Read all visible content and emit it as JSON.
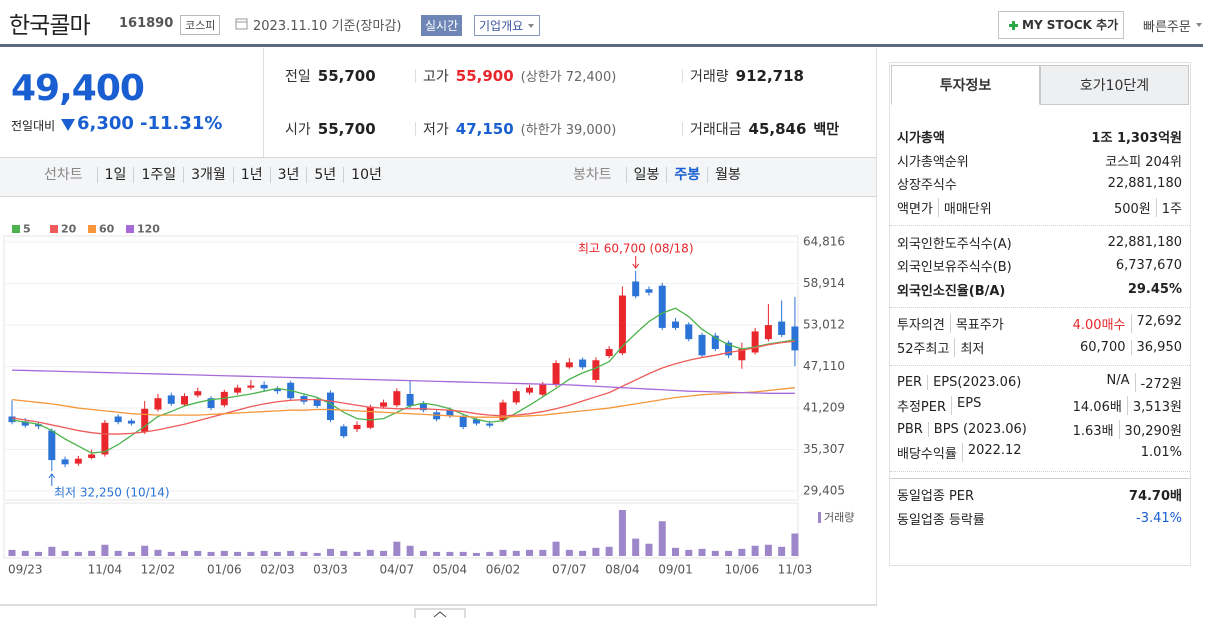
{
  "header": {
    "name": "한국콜마",
    "code": "161890",
    "market": "코스피",
    "date": "2023.11.10 기준(장마감)",
    "realtime": "실시간",
    "overview": "기업개요",
    "mystock": "MY STOCK 추가",
    "quick_order": "빠른주문"
  },
  "price": {
    "current": "49,400",
    "change_label": "전일대비",
    "change": "6,300",
    "change_pct": "-11.31%"
  },
  "quote": {
    "rows": [
      [
        {
          "label": "전일",
          "value": "55,700"
        },
        {
          "label": "고가",
          "value": "55,900",
          "note": "(상한가 72,400)"
        },
        {
          "label": "거래량",
          "value": "912,718"
        }
      ],
      [
        {
          "label": "시가",
          "value": "55,700"
        },
        {
          "label": "저가",
          "value": "47,150",
          "note": "(하한가 39,000)"
        },
        {
          "label": "거래대금",
          "value": "45,846",
          "unit": "백만"
        }
      ]
    ]
  },
  "chart_tabs": {
    "line": {
      "label": "선차트",
      "items": [
        "1일",
        "1주일",
        "3개월",
        "1년",
        "3년",
        "5년",
        "10년"
      ]
    },
    "candle": {
      "label": "봉차트",
      "items": [
        "일봉",
        "주봉",
        "월봉"
      ]
    }
  },
  "chart_data": {
    "type": "candlestick",
    "categories": [
      null,
      "09/23",
      null,
      null,
      null,
      null,
      null,
      "11/04",
      null,
      null,
      null,
      "12/02",
      null,
      null,
      null,
      null,
      "01/06",
      null,
      null,
      null,
      "02/03",
      null,
      null,
      null,
      "03/03",
      null,
      null,
      null,
      null,
      "04/07",
      null,
      null,
      null,
      "05/04",
      null,
      null,
      null,
      "06/02",
      null,
      null,
      null,
      null,
      "07/07",
      null,
      null,
      null,
      "08/04",
      null,
      null,
      null,
      "09/01",
      null,
      null,
      null,
      null,
      "10/06",
      null,
      null,
      null,
      "11/03"
    ],
    "open": [
      40000,
      39300,
      38900,
      38000,
      33900,
      33300,
      34100,
      34600,
      40000,
      39400,
      37800,
      41000,
      43000,
      41700,
      43000,
      42600,
      41600,
      43400,
      44100,
      44500,
      43900,
      44800,
      42900,
      42400,
      43400,
      38600,
      38200,
      38400,
      41400,
      41600,
      43200,
      41900,
      40600,
      41000,
      40000,
      39600,
      39000,
      39500,
      42000,
      43400,
      43100,
      44500,
      47000,
      48100,
      45200,
      48600,
      49000,
      59200,
      58100,
      58600,
      53500,
      53100,
      51600,
      51500,
      50500,
      48000,
      49100,
      51000,
      53500,
      52800
    ],
    "high": [
      42300,
      39800,
      39300,
      38300,
      34300,
      34400,
      35300,
      39500,
      40300,
      39700,
      42200,
      43200,
      43400,
      43300,
      44100,
      42900,
      43800,
      44500,
      45200,
      45000,
      44300,
      45100,
      43300,
      42800,
      43700,
      38900,
      39300,
      41700,
      42400,
      44000,
      45200,
      42200,
      40900,
      41300,
      40300,
      39900,
      39400,
      42400,
      44000,
      44500,
      44900,
      48000,
      48300,
      48400,
      48400,
      50000,
      58500,
      60700,
      58500,
      59000,
      54000,
      53400,
      51900,
      51900,
      50800,
      50500,
      52600,
      56000,
      56500,
      57000
    ],
    "low": [
      38900,
      38400,
      38200,
      32250,
      32800,
      33000,
      33900,
      34300,
      38900,
      38700,
      37500,
      40700,
      41500,
      41400,
      42700,
      40900,
      41300,
      43100,
      43800,
      43500,
      43200,
      42300,
      41700,
      41200,
      39200,
      36900,
      37800,
      38200,
      41100,
      41300,
      41200,
      40600,
      39300,
      39800,
      38200,
      38700,
      38400,
      39200,
      41700,
      43100,
      42800,
      44200,
      46800,
      46700,
      44800,
      48300,
      48700,
      56800,
      57200,
      52300,
      52300,
      50700,
      48400,
      49300,
      48300,
      46800,
      48800,
      50700,
      51300,
      47150
    ],
    "close": [
      39200,
      38700,
      38600,
      33800,
      33200,
      34000,
      34600,
      39100,
      39200,
      39000,
      41100,
      42600,
      41800,
      42900,
      43600,
      41200,
      43500,
      44100,
      44400,
      44000,
      43600,
      42600,
      42100,
      41500,
      39500,
      37200,
      38800,
      41400,
      42000,
      43600,
      41500,
      40900,
      39600,
      40100,
      38500,
      39000,
      38700,
      42000,
      43600,
      44100,
      44600,
      47600,
      47700,
      47000,
      48000,
      49600,
      57200,
      57100,
      57600,
      52600,
      52600,
      51000,
      48700,
      49600,
      48700,
      49600,
      52100,
      53000,
      51600,
      49400
    ],
    "up_color": "#e8262b",
    "down_color": "#2b73d6",
    "moving_averages": [
      {
        "name": "5",
        "color": "#4cb34c",
        "values": [
          39500,
          39200,
          38900,
          38000,
          36800,
          35800,
          34800,
          35000,
          36000,
          37300,
          38600,
          40000,
          40700,
          41500,
          42000,
          42400,
          42600,
          42900,
          43200,
          43600,
          44000,
          43700,
          43200,
          42700,
          41800,
          40600,
          39700,
          39500,
          39700,
          40600,
          41500,
          41900,
          41600,
          41100,
          40300,
          39600,
          39200,
          39400,
          40500,
          41600,
          42800,
          44000,
          45300,
          46200,
          46900,
          47800,
          50000,
          51800,
          53500,
          54700,
          55400,
          54200,
          52400,
          51200,
          50200,
          49600,
          49900,
          50300,
          50600,
          50900
        ]
      },
      {
        "name": "20",
        "color": "#ee5b5b",
        "values": [
          39800,
          39500,
          39200,
          38800,
          38400,
          38000,
          37700,
          37500,
          37500,
          37600,
          37800,
          38100,
          38500,
          38900,
          39400,
          39900,
          40400,
          40900,
          41400,
          41800,
          42100,
          42300,
          42400,
          42400,
          42200,
          41900,
          41600,
          41300,
          41200,
          41100,
          41100,
          41100,
          41000,
          40900,
          40700,
          40400,
          40200,
          40100,
          40200,
          40400,
          40700,
          41100,
          41600,
          42200,
          42800,
          43400,
          44300,
          45200,
          46100,
          46900,
          47500,
          48000,
          48400,
          48700,
          49100,
          49400,
          49800,
          50200,
          50500,
          50700
        ]
      },
      {
        "name": "60",
        "color": "#f5973a",
        "values": [
          42400,
          42200,
          42000,
          41800,
          41500,
          41200,
          41000,
          40800,
          40600,
          40400,
          40300,
          40200,
          40200,
          40200,
          40200,
          40300,
          40400,
          40500,
          40600,
          40700,
          40800,
          40900,
          40900,
          41000,
          41000,
          40900,
          40800,
          40700,
          40600,
          40500,
          40400,
          40300,
          40200,
          40100,
          40000,
          39900,
          39900,
          39900,
          40000,
          40100,
          40200,
          40400,
          40600,
          40800,
          41000,
          41200,
          41500,
          41800,
          42100,
          42400,
          42700,
          42900,
          43100,
          43200,
          43300,
          43400,
          43500,
          43700,
          43900,
          44100
        ]
      },
      {
        "name": "120",
        "color": "#a66bd8",
        "values": [
          46600,
          46550,
          46500,
          46450,
          46400,
          46350,
          46300,
          46250,
          46200,
          46150,
          46100,
          46050,
          46000,
          45950,
          45900,
          45850,
          45800,
          45750,
          45700,
          45650,
          45600,
          45550,
          45500,
          45450,
          45400,
          45350,
          45300,
          45250,
          45200,
          45150,
          45100,
          45050,
          45000,
          44950,
          44900,
          44850,
          44800,
          44750,
          44700,
          44650,
          44600,
          44550,
          44500,
          44400,
          44300,
          44200,
          44100,
          44000,
          43900,
          43800,
          43700,
          43600,
          43550,
          43500,
          43450,
          43400,
          43350,
          43300,
          43300,
          43300
        ]
      }
    ],
    "volume": {
      "name": "거래량",
      "color": "#9d86c9",
      "values": [
        6,
        5,
        4,
        9,
        5,
        4,
        5,
        11,
        5,
        4,
        10,
        6,
        4,
        5,
        5,
        4,
        5,
        4,
        4,
        5,
        4,
        5,
        4,
        3,
        7,
        5,
        4,
        6,
        5,
        14,
        10,
        5,
        4,
        4,
        4,
        3,
        4,
        6,
        5,
        6,
        6,
        14,
        6,
        5,
        8,
        9,
        45,
        17,
        12,
        34,
        8,
        6,
        7,
        5,
        5,
        7,
        10,
        11,
        9,
        22
      ]
    },
    "ylim": [
      29405,
      64816
    ],
    "yticks": [
      {
        "value": 29405,
        "label": "29,405"
      },
      {
        "value": 35307,
        "label": "35,307"
      },
      {
        "value": 41209,
        "label": "41,209"
      },
      {
        "value": 47110,
        "label": "47,110"
      },
      {
        "value": 53012,
        "label": "53,012"
      },
      {
        "value": 58914,
        "label": "58,914"
      },
      {
        "value": 64816,
        "label": "64,816"
      }
    ],
    "annotations": [
      {
        "text": "최고 60,700 (08/18)",
        "value": 60700,
        "color": "#e8262b"
      },
      {
        "text": "최저 32,250 (10/14)",
        "value": 32250,
        "color": "#2b73d6"
      }
    ]
  },
  "invest": {
    "tabs": [
      "투자정보",
      "호가10단계"
    ],
    "groups": [
      {
        "rows": [
          {
            "label": [
              "시가총액"
            ],
            "value": [
              "1조 1,303억원"
            ]
          },
          {
            "label": [
              "시가총액순위"
            ],
            "value": [
              "코스피 204위"
            ]
          },
          {
            "label": [
              "상장주식수"
            ],
            "value": [
              "22,881,180"
            ]
          },
          {
            "label": [
              "액면가",
              "매매단위"
            ],
            "value": [
              "500원",
              "1주"
            ]
          }
        ]
      },
      {
        "rows": [
          {
            "label": [
              "외국인한도주식수(A)"
            ],
            "value": [
              "22,881,180"
            ]
          },
          {
            "label": [
              "외국인보유주식수(B)"
            ],
            "value": [
              "6,737,670"
            ]
          },
          {
            "label": [
              "외국인소진율(B/A)"
            ],
            "value": [
              "29.45%"
            ]
          }
        ]
      },
      {
        "rows": [
          {
            "label": [
              "투자의견",
              "목표주가"
            ],
            "value": [
              "4.00매수",
              "72,692"
            ]
          },
          {
            "label": [
              "52주최고",
              "최저"
            ],
            "value": [
              "60,700",
              "36,950"
            ]
          }
        ]
      },
      {
        "rows": [
          {
            "label": [
              "PER",
              "EPS(2023.06)"
            ],
            "value": [
              "N/A",
              "-272원"
            ]
          },
          {
            "label": [
              "추정PER",
              "EPS"
            ],
            "value": [
              "14.06배",
              "3,513원"
            ]
          },
          {
            "label": [
              "PBR",
              "BPS (2023.06)"
            ],
            "value": [
              "1.63배",
              "30,290원"
            ]
          },
          {
            "label": [
              "배당수익률",
              "2022.12"
            ],
            "value": [
              "1.01%"
            ]
          }
        ]
      },
      {
        "rows": [
          {
            "label": [
              "동일업종 PER"
            ],
            "value": [
              "74.70배"
            ]
          },
          {
            "label": [
              "동일업종 등락률"
            ],
            "value": [
              "-3.41%"
            ]
          }
        ]
      }
    ]
  }
}
